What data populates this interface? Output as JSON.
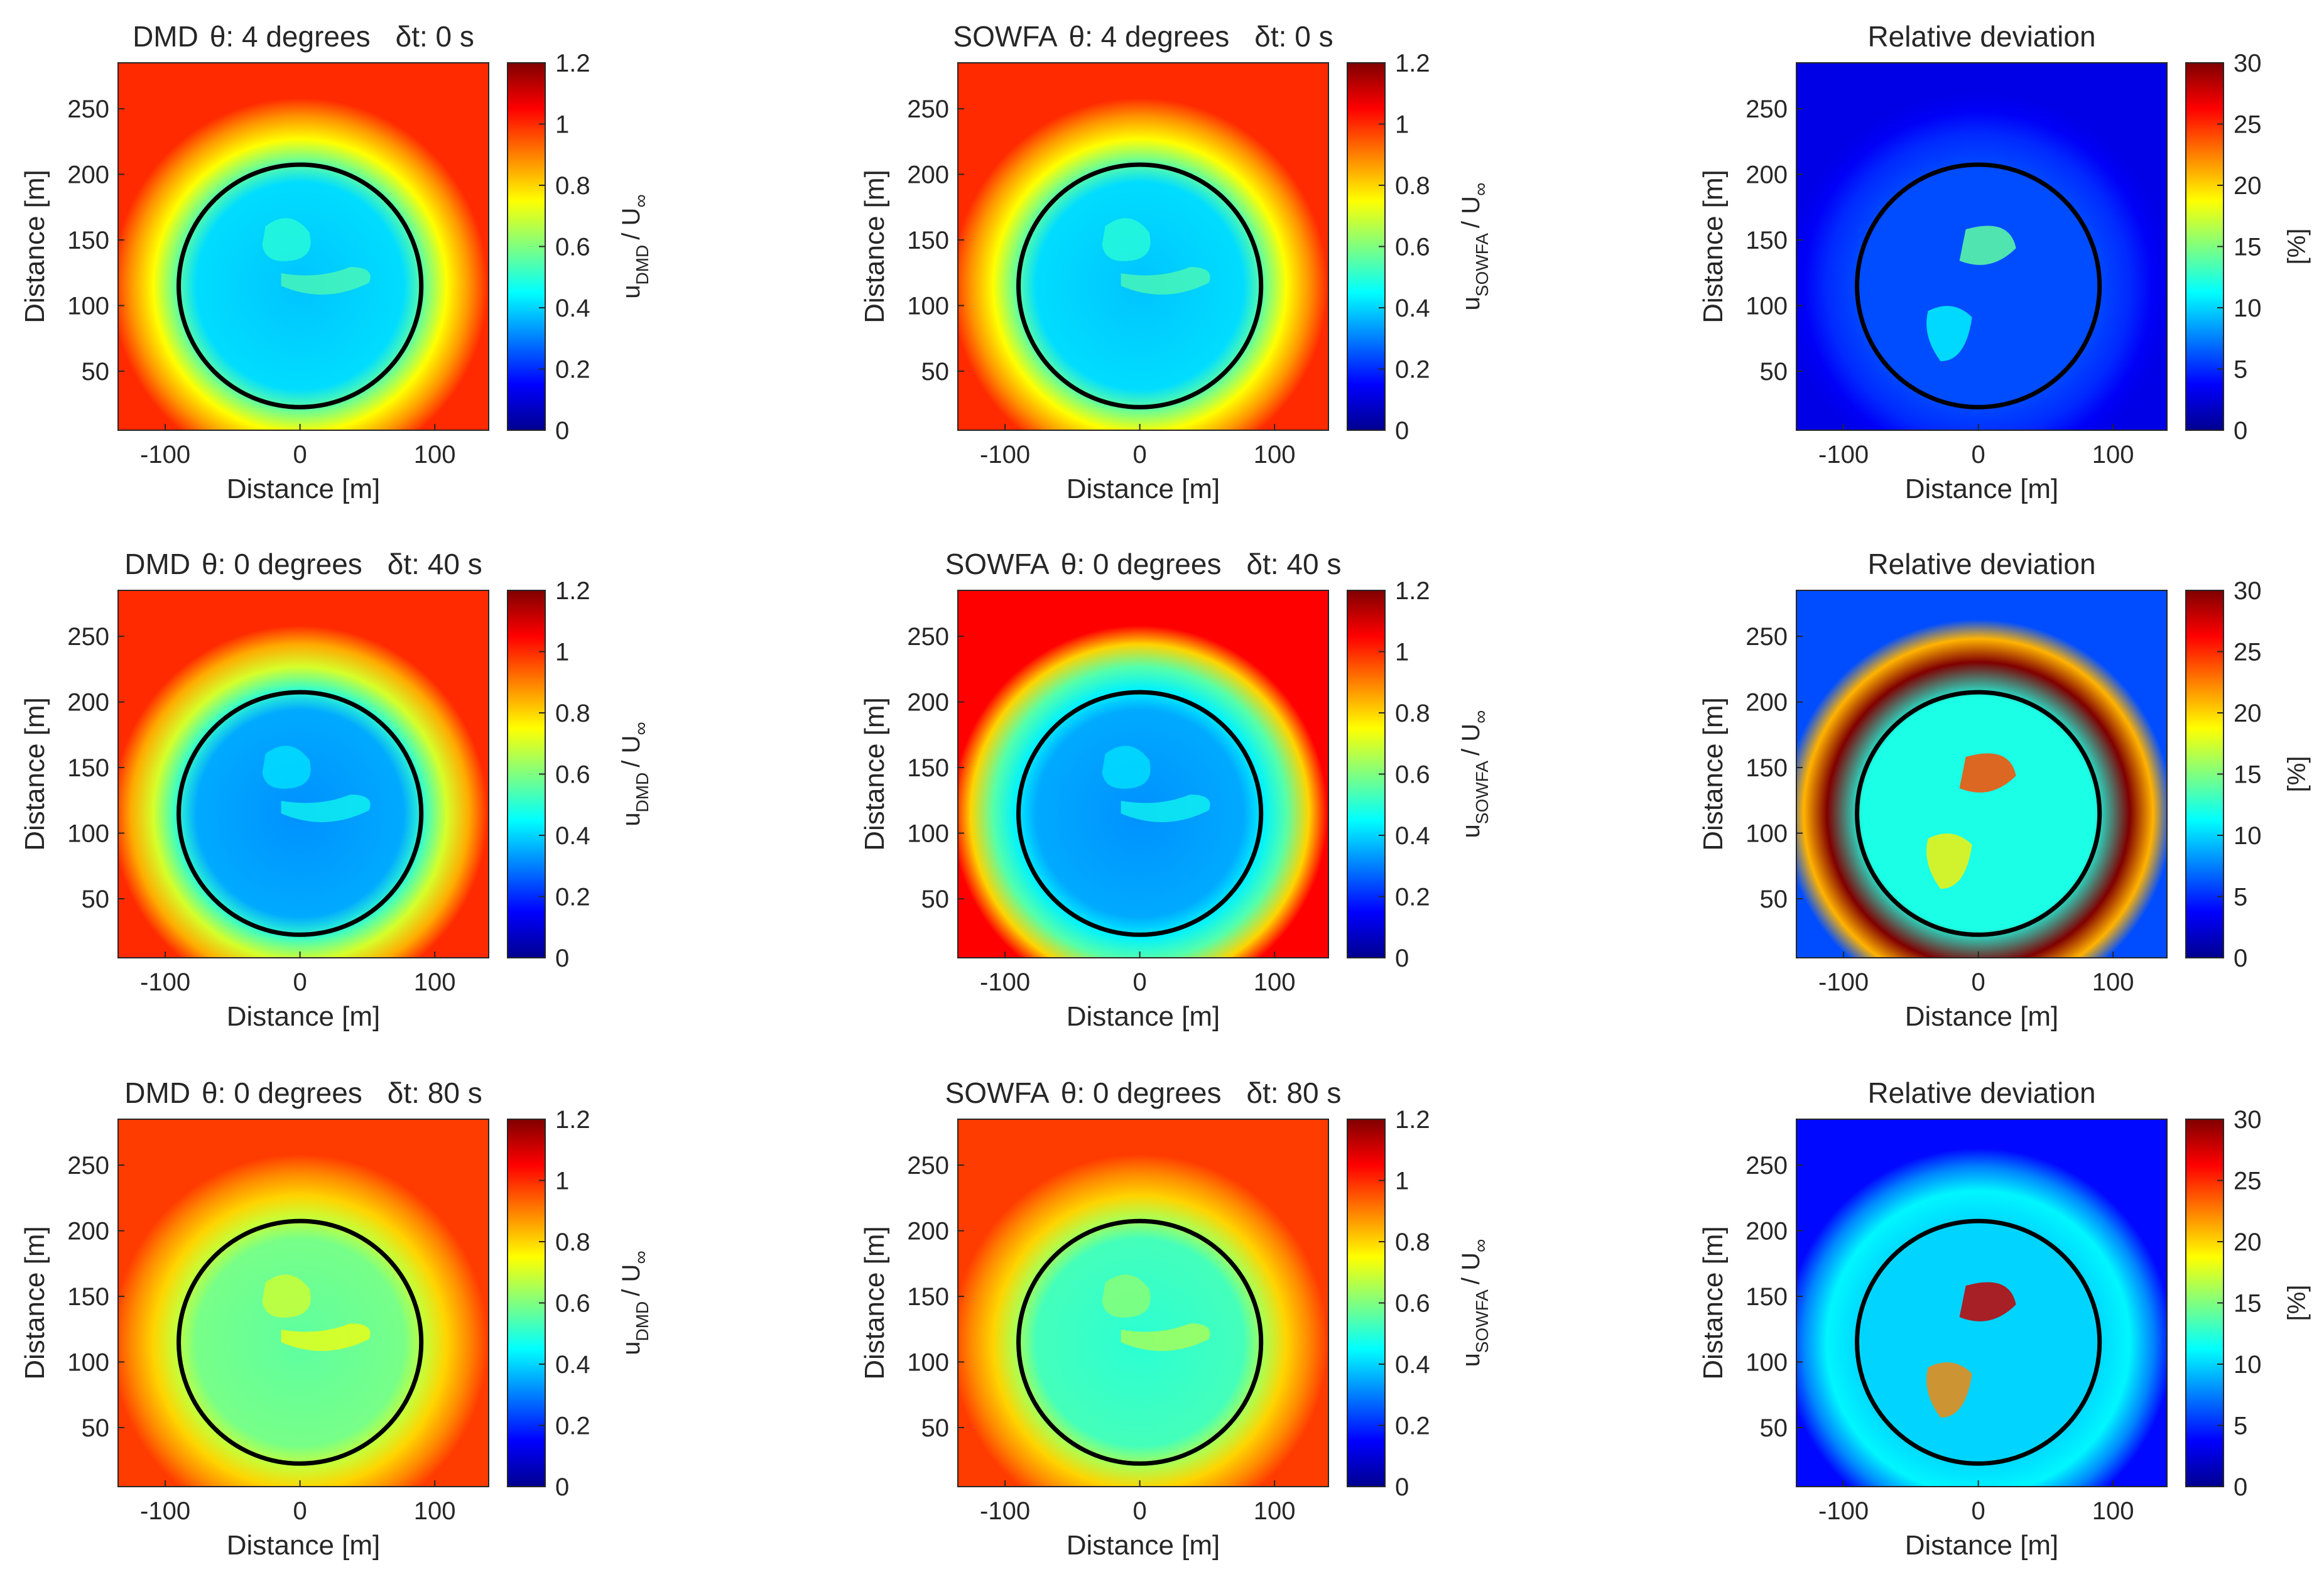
{
  "figure": {
    "description_rows": [
      "δt = 0 s",
      "δt = 40 s",
      "δt = 80 s"
    ]
  },
  "chart_data": [
    {
      "type": "heatmap",
      "panel": "DMD",
      "title_prefix": "DMD",
      "theta_deg": 4,
      "dt_s": 0,
      "title_theta": "θ: 4 degrees",
      "title_dt": "δt: 0 s",
      "xlabel": "Distance [m]",
      "ylabel": "Distance [m]",
      "xticks": [
        "-100",
        "0",
        "100"
      ],
      "yticks": [
        "50",
        "100",
        "150",
        "200",
        "250"
      ],
      "xlim": [
        -135,
        140
      ],
      "ylim": [
        5,
        285
      ],
      "colorbar": {
        "label_main": "u",
        "label_sub": "DMD",
        "label_tail": "/ U",
        "label_inf": "∞",
        "range": [
          0,
          1.2
        ],
        "ticks": [
          "0",
          "0.2",
          "0.4",
          "0.6",
          "0.8",
          "1",
          "1.2"
        ],
        "colormap": "jet"
      },
      "field": {
        "freestream": 1.0,
        "wake_core": 0.38,
        "shear_edge": 0.75,
        "hub_region": 0.5
      },
      "rotor_circle": {
        "center_x": 0,
        "center_y": 115,
        "radius": 90
      }
    },
    {
      "type": "heatmap",
      "panel": "SOWFA",
      "title_prefix": "SOWFA",
      "theta_deg": 4,
      "dt_s": 0,
      "title_theta": "θ: 4 degrees",
      "title_dt": "δt: 0 s",
      "xlabel": "Distance [m]",
      "ylabel": "Distance [m]",
      "xticks": [
        "-100",
        "0",
        "100"
      ],
      "yticks": [
        "50",
        "100",
        "150",
        "200",
        "250"
      ],
      "xlim": [
        -135,
        140
      ],
      "ylim": [
        5,
        285
      ],
      "colorbar": {
        "label_main": "u",
        "label_sub": "SOWFA",
        "label_tail": "/ U",
        "label_inf": "∞",
        "range": [
          0,
          1.2
        ],
        "ticks": [
          "0",
          "0.2",
          "0.4",
          "0.6",
          "0.8",
          "1",
          "1.2"
        ],
        "colormap": "jet"
      },
      "field": {
        "freestream": 1.0,
        "wake_core": 0.38,
        "shear_edge": 0.75,
        "hub_region": 0.5
      },
      "rotor_circle": {
        "center_x": 0,
        "center_y": 115,
        "radius": 90
      }
    },
    {
      "type": "heatmap",
      "panel": "deviation",
      "title_full": "Relative deviation",
      "dt_s": 0,
      "xlabel": "Distance [m]",
      "ylabel": "Distance [m]",
      "xticks": [
        "-100",
        "0",
        "100"
      ],
      "yticks": [
        "50",
        "100",
        "150",
        "200",
        "250"
      ],
      "xlim": [
        -135,
        140
      ],
      "ylim": [
        5,
        285
      ],
      "colorbar": {
        "label": "[%]",
        "range": [
          0,
          30
        ],
        "ticks": [
          "0",
          "5",
          "10",
          "15",
          "20",
          "25",
          "30"
        ],
        "colormap": "jet"
      },
      "field": {
        "background_pct": 3,
        "wake_pct": 6,
        "ring_pct": 5,
        "peak_pct": 14
      },
      "rotor_circle": {
        "center_x": 0,
        "center_y": 115,
        "radius": 90
      }
    },
    {
      "type": "heatmap",
      "panel": "DMD",
      "title_prefix": "DMD",
      "theta_deg": 0,
      "dt_s": 40,
      "title_theta": "θ: 0 degrees",
      "title_dt": "δt: 40 s",
      "xlabel": "Distance [m]",
      "ylabel": "Distance [m]",
      "xticks": [
        "-100",
        "0",
        "100"
      ],
      "yticks": [
        "50",
        "100",
        "150",
        "200",
        "250"
      ],
      "xlim": [
        -135,
        140
      ],
      "ylim": [
        5,
        285
      ],
      "colorbar": {
        "label_main": "u",
        "label_sub": "DMD",
        "label_tail": "/ U",
        "label_inf": "∞",
        "range": [
          0,
          1.2
        ],
        "ticks": [
          "0",
          "0.2",
          "0.4",
          "0.6",
          "0.8",
          "1",
          "1.2"
        ],
        "colormap": "jet"
      },
      "field": {
        "freestream": 1.0,
        "wake_core": 0.32,
        "shear_edge": 0.7,
        "hub_region": 0.42
      },
      "rotor_circle": {
        "center_x": 0,
        "center_y": 115,
        "radius": 90
      }
    },
    {
      "type": "heatmap",
      "panel": "SOWFA",
      "title_prefix": "SOWFA",
      "theta_deg": 0,
      "dt_s": 40,
      "title_theta": "θ: 0 degrees",
      "title_dt": "δt: 40 s",
      "xlabel": "Distance [m]",
      "ylabel": "Distance [m]",
      "xticks": [
        "-100",
        "0",
        "100"
      ],
      "yticks": [
        "50",
        "100",
        "150",
        "200",
        "250"
      ],
      "xlim": [
        -135,
        140
      ],
      "ylim": [
        5,
        285
      ],
      "colorbar": {
        "label_main": "u",
        "label_sub": "SOWFA",
        "label_tail": "/ U",
        "label_inf": "∞",
        "range": [
          0,
          1.2
        ],
        "ticks": [
          "0",
          "0.2",
          "0.4",
          "0.6",
          "0.8",
          "1",
          "1.2"
        ],
        "colormap": "jet"
      },
      "field": {
        "freestream": 1.05,
        "wake_core": 0.32,
        "shear_edge": 0.55,
        "hub_region": 0.42
      },
      "rotor_circle": {
        "center_x": 0,
        "center_y": 115,
        "radius": 90
      }
    },
    {
      "type": "heatmap",
      "panel": "deviation",
      "title_full": "Relative deviation",
      "dt_s": 40,
      "xlabel": "Distance [m]",
      "ylabel": "Distance [m]",
      "xticks": [
        "-100",
        "0",
        "100"
      ],
      "yticks": [
        "50",
        "100",
        "150",
        "200",
        "250"
      ],
      "xlim": [
        -135,
        140
      ],
      "ylim": [
        5,
        285
      ],
      "colorbar": {
        "label": "[%]",
        "range": [
          0,
          30
        ],
        "ticks": [
          "0",
          "5",
          "10",
          "15",
          "20",
          "25",
          "30"
        ],
        "colormap": "jet"
      },
      "field": {
        "background_pct": 6,
        "wake_pct": 12,
        "ring_pct": 30,
        "peak_pct": 24
      },
      "rotor_circle": {
        "center_x": 0,
        "center_y": 115,
        "radius": 90
      }
    },
    {
      "type": "heatmap",
      "panel": "DMD",
      "title_prefix": "DMD",
      "theta_deg": 0,
      "dt_s": 80,
      "title_theta": "θ: 0 degrees",
      "title_dt": "δt: 80 s",
      "xlabel": "Distance [m]",
      "ylabel": "Distance [m]",
      "xticks": [
        "-100",
        "0",
        "100"
      ],
      "yticks": [
        "50",
        "100",
        "150",
        "200",
        "250"
      ],
      "xlim": [
        -135,
        140
      ],
      "ylim": [
        5,
        285
      ],
      "colorbar": {
        "label_main": "u",
        "label_sub": "DMD",
        "label_tail": "/ U",
        "label_inf": "∞",
        "range": [
          0,
          1.2
        ],
        "ticks": [
          "0",
          "0.2",
          "0.4",
          "0.6",
          "0.8",
          "1",
          "1.2"
        ],
        "colormap": "jet"
      },
      "field": {
        "freestream": 0.98,
        "wake_core": 0.56,
        "shear_edge": 0.8,
        "hub_region": 0.7
      },
      "rotor_circle": {
        "center_x": 0,
        "center_y": 115,
        "radius": 90
      }
    },
    {
      "type": "heatmap",
      "panel": "SOWFA",
      "title_prefix": "SOWFA",
      "theta_deg": 0,
      "dt_s": 80,
      "title_theta": "θ: 0 degrees",
      "title_dt": "δt: 80 s",
      "xlabel": "Distance [m]",
      "ylabel": "Distance [m]",
      "xticks": [
        "-100",
        "0",
        "100"
      ],
      "yticks": [
        "50",
        "100",
        "150",
        "200",
        "250"
      ],
      "xlim": [
        -135,
        140
      ],
      "ylim": [
        5,
        285
      ],
      "colorbar": {
        "label_main": "u",
        "label_sub": "SOWFA",
        "label_tail": "/ U",
        "label_inf": "∞",
        "range": [
          0,
          1.2
        ],
        "ticks": [
          "0",
          "0.2",
          "0.4",
          "0.6",
          "0.8",
          "1",
          "1.2"
        ],
        "colormap": "jet"
      },
      "field": {
        "freestream": 0.98,
        "wake_core": 0.5,
        "shear_edge": 0.8,
        "hub_region": 0.62
      },
      "rotor_circle": {
        "center_x": 0,
        "center_y": 115,
        "radius": 90
      }
    },
    {
      "type": "heatmap",
      "panel": "deviation",
      "title_full": "Relative deviation",
      "dt_s": 80,
      "xlabel": "Distance [m]",
      "ylabel": "Distance [m]",
      "xticks": [
        "-100",
        "0",
        "100"
      ],
      "yticks": [
        "50",
        "100",
        "150",
        "200",
        "250"
      ],
      "xlim": [
        -135,
        140
      ],
      "ylim": [
        5,
        285
      ],
      "colorbar": {
        "label": "[%]",
        "range": [
          0,
          30
        ],
        "ticks": [
          "0",
          "5",
          "10",
          "15",
          "20",
          "25",
          "30"
        ],
        "colormap": "jet"
      },
      "field": {
        "background_pct": 4,
        "wake_pct": 10,
        "ring_pct": 11,
        "peak_pct": 28
      },
      "rotor_circle": {
        "center_x": 0,
        "center_y": 115,
        "radius": 90
      }
    }
  ]
}
